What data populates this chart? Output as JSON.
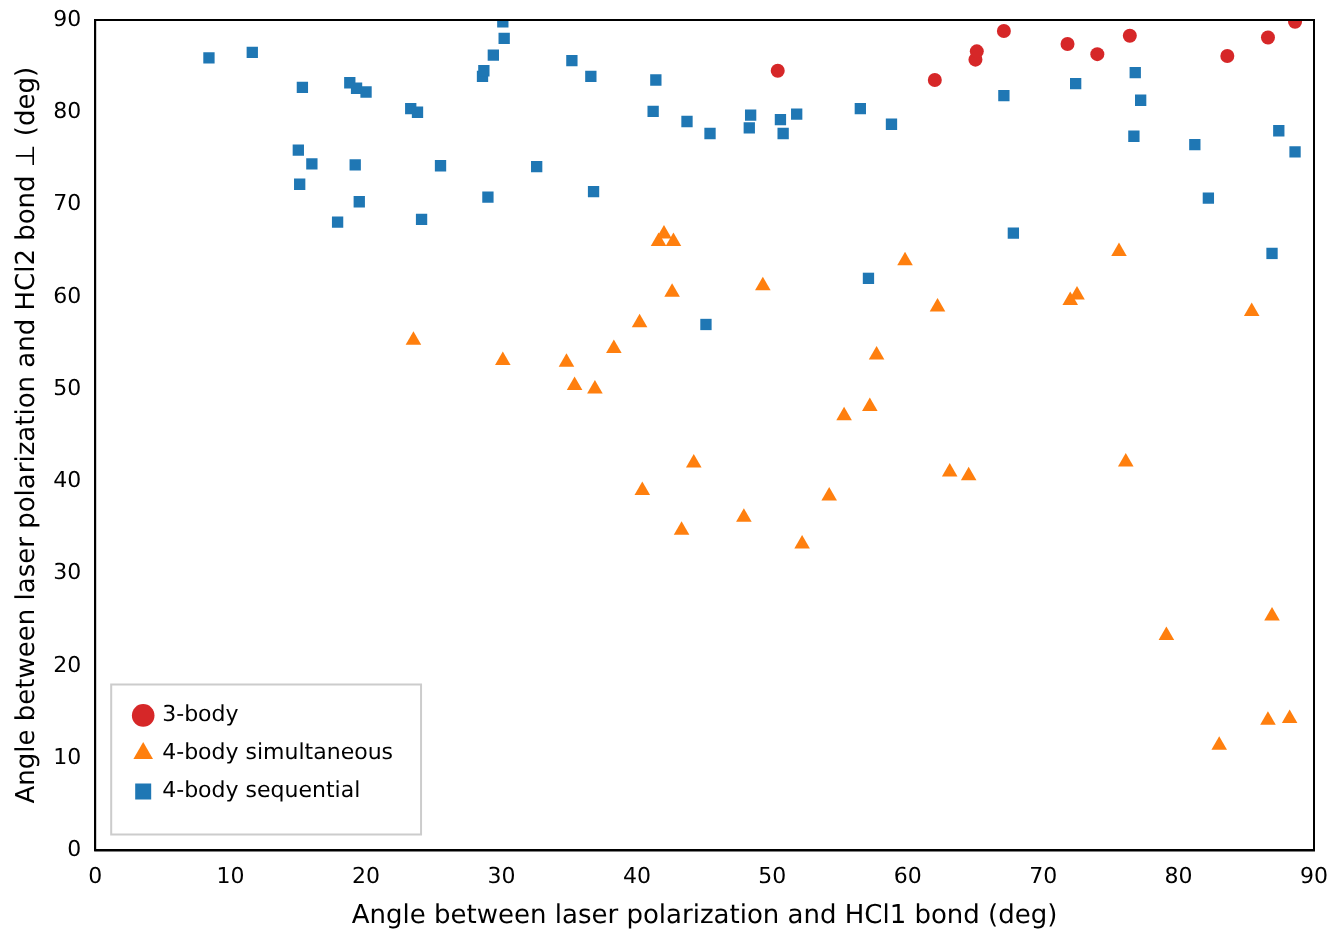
{
  "chart_data": {
    "type": "scatter",
    "xlabel": "Angle between laser polarization and HCl1 bond (deg)",
    "ylabel": "Angle between laser polarization and HCl2 bond ⊥ (deg)",
    "xlim": [
      0,
      90
    ],
    "ylim": [
      0,
      90
    ],
    "xticks": [
      0,
      10,
      20,
      30,
      40,
      50,
      60,
      70,
      80,
      90
    ],
    "yticks": [
      0,
      10,
      20,
      30,
      40,
      50,
      60,
      70,
      80,
      90
    ],
    "grid": false,
    "legend": "bottom left",
    "series": [
      {
        "name": "3-body",
        "color": "#d62728",
        "marker": "circle",
        "x": [
          50.4,
          62,
          65,
          65.1,
          67.1,
          71.8,
          74,
          76.4,
          83.6,
          86.6,
          88.6
        ],
        "values": [
          84.5,
          83.5,
          85.7,
          86.6,
          88.8,
          87.4,
          86.3,
          88.3,
          86.1,
          88.1,
          89.8
        ]
      },
      {
        "name": "4-body simultaneous",
        "color": "#ff7f0e",
        "marker": "triangle",
        "x": [
          23.5,
          30.1,
          34.8,
          35.4,
          36.9,
          38.3,
          40.2,
          40.4,
          41.6,
          42.0,
          42.6,
          42.7,
          43.3,
          44.2,
          47.9,
          49.3,
          52.2,
          54.2,
          55.3,
          57.2,
          57.7,
          59.8,
          62.2,
          63.1,
          64.5,
          72,
          72.5,
          75.6,
          76.1,
          79.1,
          83,
          85.4,
          86.6,
          86.9,
          88.2
        ],
        "values": [
          55.3,
          53.1,
          52.9,
          50.4,
          50.0,
          54.4,
          57.2,
          39,
          66.0,
          66.8,
          60.5,
          66,
          34.7,
          42,
          36.1,
          61.2,
          33.2,
          38.4,
          47.1,
          48.1,
          53.7,
          63.9,
          58.9,
          41,
          40.6,
          59.6,
          60.2,
          64.9,
          42.1,
          23.3,
          11.4,
          58.4,
          14.1,
          25.4,
          14.3
        ]
      },
      {
        "name": "4-body sequential",
        "color": "#1f77b4",
        "marker": "square",
        "x": [
          8.4,
          11.6,
          15,
          15.1,
          15.3,
          16,
          17.9,
          18.8,
          19.2,
          19.3,
          19.5,
          20,
          23.3,
          23.8,
          24.1,
          25.5,
          29,
          28.6,
          28.7,
          29.4,
          30.1,
          30.2,
          32.6,
          35.2,
          36.6,
          36.8,
          41.2,
          41.4,
          43.7,
          45.1,
          45.4,
          48.3,
          48.4,
          50.6,
          50.8,
          51.8,
          56.5,
          57.1,
          58.8,
          67.1,
          67.8,
          72.4,
          76.8,
          76.7,
          77.2,
          81.2,
          82.2,
          86.9,
          87.4,
          88.6
        ],
        "values": [
          85.9,
          86.5,
          75.9,
          72.2,
          82.7,
          74.4,
          68.1,
          83.2,
          74.3,
          82.6,
          70.3,
          82.2,
          80.4,
          80,
          68.4,
          74.2,
          70.8,
          83.9,
          84.5,
          86.2,
          89.8,
          88,
          74.1,
          85.6,
          83.9,
          71.4,
          80.1,
          83.5,
          79,
          57,
          77.7,
          78.3,
          79.7,
          79.2,
          77.7,
          79.8,
          80.4,
          62,
          78.7,
          81.8,
          66.9,
          83.1,
          84.3,
          77.4,
          81.3,
          76.5,
          70.7,
          64.7,
          78,
          75.7
        ]
      }
    ]
  }
}
